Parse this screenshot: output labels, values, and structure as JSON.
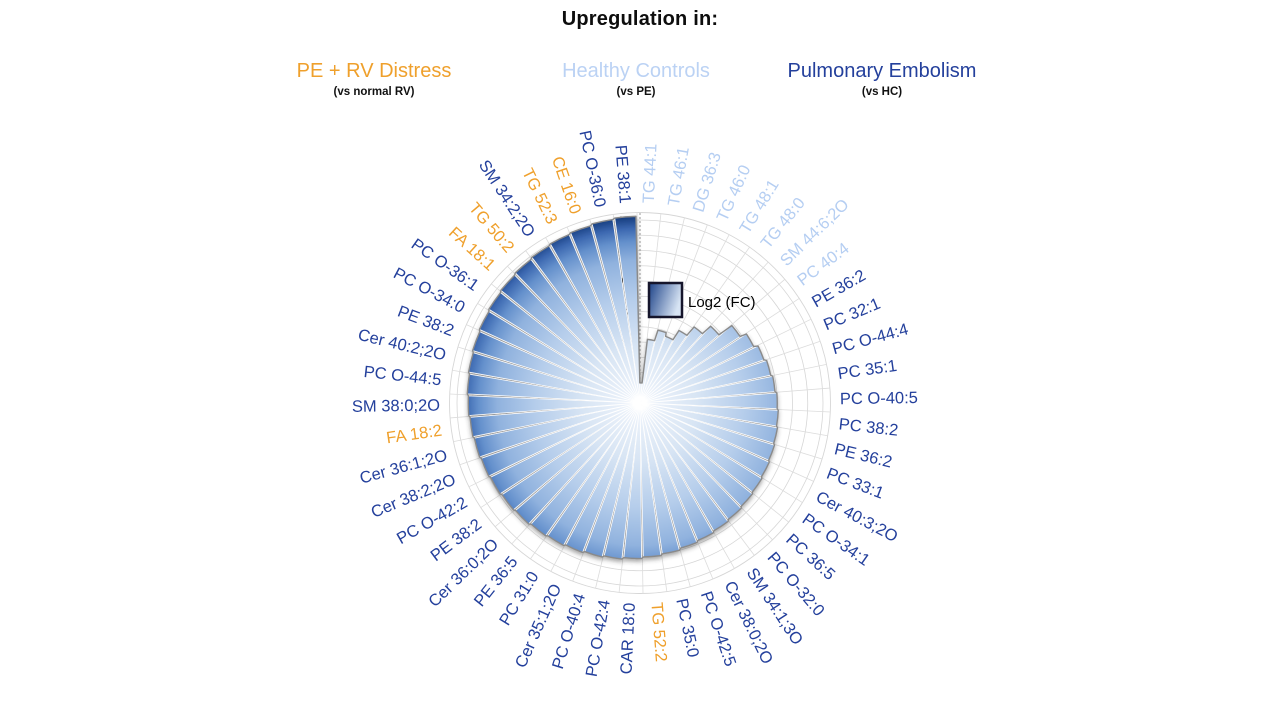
{
  "header": {
    "title": "Upregulation in:"
  },
  "groups": [
    {
      "key": "pe_rv",
      "label": "PE + RV Distress",
      "sub": "(vs normal RV)",
      "color": "#EFA02C"
    },
    {
      "key": "hc",
      "label": "Healthy Controls",
      "sub": "(vs PE)",
      "color": "#BBD2F4"
    },
    {
      "key": "pe",
      "label": "Pulmonary Embolism",
      "sub": "(vs HC)",
      "color": "#24409C"
    }
  ],
  "legend": {
    "label": "Log2 (FC)"
  },
  "radial_ticks": [
    "1.25",
    "0.75",
    "0.25",
    "-0.25",
    "-0.75",
    "-1.25",
    "-1.75"
  ],
  "colors": {
    "label_pe_dark_blue": "#24409C",
    "label_hc_light_blue": "#B5CEF2",
    "label_pe_rv_orange": "#EFA02C",
    "fill_gradient_center": "#F2F6FC",
    "fill_gradient_outer": "#0A2F6E",
    "grid_line": "#D6D6D6",
    "outline": "#8A8A8A"
  },
  "chart_data": {
    "type": "polar_bar",
    "title": "Upregulation in:",
    "series_name": "Log2 (FC)",
    "radial_axis": {
      "min": -1.75,
      "max": 1.25,
      "tick_step": 0.5,
      "grid_step": 0.25
    },
    "start_angle_deg": 0,
    "direction": "clockwise",
    "sectors": [
      {
        "label": "PE 38:1",
        "group": "pe",
        "value": 1.31
      },
      {
        "label": "TG 44:1",
        "group": "hc",
        "value": -1.42
      },
      {
        "label": "TG 46:1",
        "group": "hc",
        "value": -0.7
      },
      {
        "label": "DG 36:3",
        "group": "hc",
        "value": -0.52
      },
      {
        "label": "TG 46:0",
        "group": "hc",
        "value": -0.58
      },
      {
        "label": "TG 48:1",
        "group": "hc",
        "value": -0.4
      },
      {
        "label": "TG 48:0",
        "group": "hc",
        "value": -0.22
      },
      {
        "label": "SM 44:6;2O",
        "group": "hc",
        "value": -0.04
      },
      {
        "label": "PC 40:4",
        "group": "hc",
        "value": 0.22
      },
      {
        "label": "PE 36:2",
        "group": "pe",
        "value": 0.33
      },
      {
        "label": "PC 32:1",
        "group": "pe",
        "value": 0.4
      },
      {
        "label": "PC O-44:4",
        "group": "pe",
        "value": 0.44
      },
      {
        "label": "PC 35:1",
        "group": "pe",
        "value": 0.47
      },
      {
        "label": "PC O-40:5",
        "group": "pe",
        "value": 0.5
      },
      {
        "label": "PC 38:2",
        "group": "pe",
        "value": 0.52
      },
      {
        "label": "PE 36:2",
        "group": "pe",
        "value": 0.54
      },
      {
        "label": "PC 33:1",
        "group": "pe",
        "value": 0.56
      },
      {
        "label": "Cer 40:3;2O",
        "group": "pe",
        "value": 0.58
      },
      {
        "label": "PC O-34:1",
        "group": "pe",
        "value": 0.6
      },
      {
        "label": "PC 36:5",
        "group": "pe",
        "value": 0.62
      },
      {
        "label": "PC O-32:0",
        "group": "pe",
        "value": 0.645
      },
      {
        "label": "SM 34:1;3O",
        "group": "pe",
        "value": 0.67
      },
      {
        "label": "Cer 38:0;2O",
        "group": "pe",
        "value": 0.695
      },
      {
        "label": "PC O-42:5",
        "group": "pe",
        "value": 0.72
      },
      {
        "label": "PC 35:0",
        "group": "pe",
        "value": 0.75
      },
      {
        "label": "TG 52:2",
        "group": "pe_rv",
        "value": 0.775
      },
      {
        "label": "CAR 18:0",
        "group": "pe",
        "value": 0.8
      },
      {
        "label": "PC O-42:4",
        "group": "pe",
        "value": 0.825
      },
      {
        "label": "PC O-40:4",
        "group": "pe",
        "value": 0.85
      },
      {
        "label": "Cer 35:1;2O",
        "group": "pe",
        "value": 0.875
      },
      {
        "label": "PC 31:0",
        "group": "pe",
        "value": 0.9
      },
      {
        "label": "PE 36:5",
        "group": "pe",
        "value": 0.92
      },
      {
        "label": "Cer 36:0;2O",
        "group": "pe",
        "value": 0.945
      },
      {
        "label": "PE 38:2",
        "group": "pe",
        "value": 0.965
      },
      {
        "label": "PC O-42:2",
        "group": "pe",
        "value": 0.985
      },
      {
        "label": "Cer 38:2;2O",
        "group": "pe",
        "value": 1.005
      },
      {
        "label": "Cer 36:1;2O",
        "group": "pe",
        "value": 1.025
      },
      {
        "label": "FA 18:2",
        "group": "pe_rv",
        "value": 1.045
      },
      {
        "label": "SM 38:0;2O",
        "group": "pe",
        "value": 1.065
      },
      {
        "label": "PC O-44:5",
        "group": "pe",
        "value": 1.085
      },
      {
        "label": "Cer 40:2;2O",
        "group": "pe",
        "value": 1.105
      },
      {
        "label": "PE 38:2",
        "group": "pe",
        "value": 1.125
      },
      {
        "label": "PC O-34:0",
        "group": "pe",
        "value": 1.145
      },
      {
        "label": "PC O-36:1",
        "group": "pe",
        "value": 1.165
      },
      {
        "label": "FA 18:1",
        "group": "pe_rv",
        "value": 1.185
      },
      {
        "label": "TG 50:2",
        "group": "pe_rv",
        "value": 1.205
      },
      {
        "label": "SM 34:2;2O",
        "group": "pe",
        "value": 1.225
      },
      {
        "label": "TG 52:3",
        "group": "pe_rv",
        "value": 1.245
      },
      {
        "label": "CE 16:0",
        "group": "pe_rv",
        "value": 1.265
      },
      {
        "label": "PC O-36:0",
        "group": "pe",
        "value": 1.29
      }
    ]
  }
}
